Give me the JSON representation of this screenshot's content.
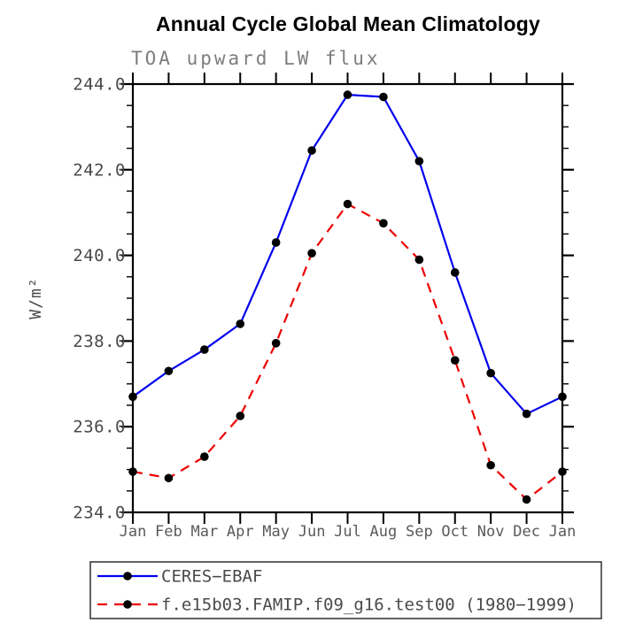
{
  "chart_data": {
    "type": "line",
    "title": "Annual Cycle Global Mean Climatology",
    "subtitle": "TOA upward LW flux",
    "xlabel": "",
    "ylabel": "W/m²",
    "categories": [
      "Jan",
      "Feb",
      "Mar",
      "Apr",
      "May",
      "Jun",
      "Jul",
      "Aug",
      "Sep",
      "Oct",
      "Nov",
      "Dec",
      "Jan"
    ],
    "ylim": [
      234.0,
      244.0
    ],
    "ytick_major": 2.0,
    "ytick_minor": 0.5,
    "ytick_labels": [
      "234.0",
      "236.0",
      "238.0",
      "240.0",
      "242.0",
      "244.0"
    ],
    "grid": false,
    "series": [
      {
        "name": "CERES−EBAF",
        "color": "#0000ee",
        "style": "solid",
        "marker": "black-dot",
        "values": [
          236.7,
          237.3,
          237.8,
          238.4,
          240.3,
          242.45,
          243.75,
          243.7,
          242.2,
          239.6,
          237.25,
          236.3,
          236.7
        ]
      },
      {
        "name": "f.e15b03.FAMIP.f09_g16.test00 (1980−1999)",
        "color": "#ee0000",
        "style": "dashed",
        "marker": "black-dot",
        "values": [
          234.95,
          234.8,
          235.3,
          236.25,
          237.95,
          240.05,
          241.2,
          240.75,
          239.9,
          237.55,
          235.1,
          234.3,
          234.95
        ]
      }
    ],
    "legend": {
      "position": "bottom-left",
      "border": true
    },
    "colors": {
      "axis": "#000000",
      "tick_label": "#4a4a4a",
      "month_label": "#5a5a5a",
      "subtitle": "#7d7d7d",
      "legend_text": "#4a4a4a",
      "marker": "#000000"
    }
  }
}
